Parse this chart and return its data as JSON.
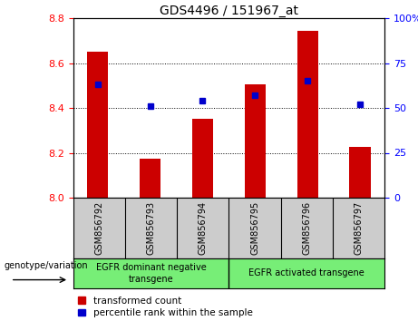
{
  "title": "GDS4496 / 151967_at",
  "categories": [
    "GSM856792",
    "GSM856793",
    "GSM856794",
    "GSM856795",
    "GSM856796",
    "GSM856797"
  ],
  "bar_values": [
    8.65,
    8.175,
    8.35,
    8.505,
    8.745,
    8.225
  ],
  "bar_base": 8.0,
  "percentile_values": [
    63,
    51,
    54,
    57,
    65,
    52
  ],
  "ylim_left": [
    8.0,
    8.8
  ],
  "ylim_right": [
    0,
    100
  ],
  "yticks_left": [
    8.0,
    8.2,
    8.4,
    8.6,
    8.8
  ],
  "yticks_right": [
    0,
    25,
    50,
    75,
    100
  ],
  "bar_color": "#cc0000",
  "percentile_color": "#0000cc",
  "background_color": "#ffffff",
  "group1_label": "EGFR dominant negative\ntransgene",
  "group2_label": "EGFR activated transgene",
  "group1_indices": [
    0,
    1,
    2
  ],
  "group2_indices": [
    3,
    4,
    5
  ],
  "genotype_label": "genotype/variation",
  "legend_bar_label": "transformed count",
  "legend_pct_label": "percentile rank within the sample",
  "group_bg_color": "#77ee77",
  "tick_area_bg": "#cccccc",
  "title_fontsize": 10,
  "tick_fontsize": 8,
  "legend_fontsize": 7.5
}
